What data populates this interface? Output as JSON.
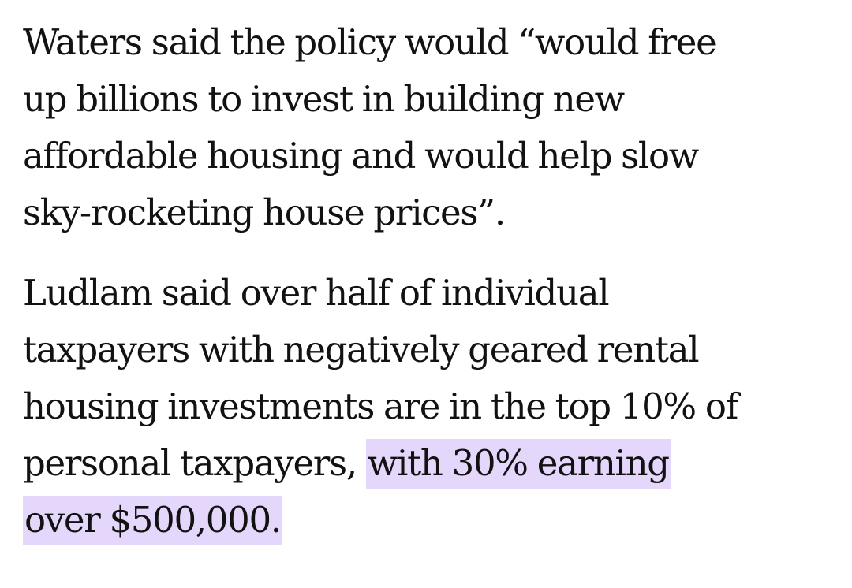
{
  "article": {
    "paragraph1": {
      "lines": [
        "Waters said the policy would “would free",
        "up billions to invest in building new",
        "affordable housing and would help slow",
        "sky-rocketing house prices”."
      ]
    },
    "paragraph2": {
      "lines": [
        "Ludlam said over half of individual",
        "taxpayers with negatively geared rental",
        "housing investments are in the top 10% of"
      ],
      "line4_plain": "personal taxpayers, ",
      "line4_highlight": "with 30% earning",
      "line5_highlight": "over $500,000."
    },
    "highlight_color": "#e5d6fb",
    "text_color": "#121212"
  }
}
